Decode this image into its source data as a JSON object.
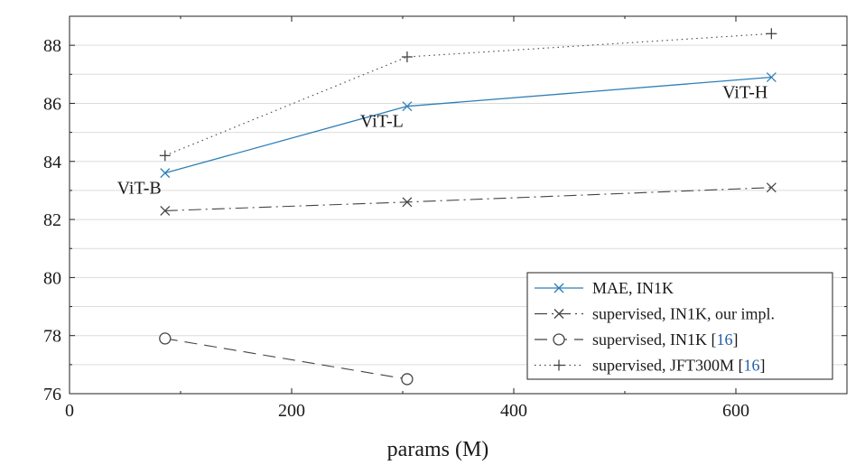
{
  "chart_data": {
    "type": "line",
    "title": "",
    "xlabel": "params (M)",
    "ylabel": "",
    "xlim": [
      0,
      700
    ],
    "ylim": [
      76,
      89
    ],
    "xticks": [
      0,
      200,
      400,
      600
    ],
    "yticks": [
      76,
      78,
      80,
      82,
      84,
      86,
      88
    ],
    "grid": true,
    "legend_position": "bottom-right",
    "colors": {
      "accent": "#2e7fb8",
      "dark": "#444444",
      "link": "#1f5fa8"
    },
    "series": [
      {
        "name": "MAE, IN1K",
        "style": "solid",
        "marker": "x",
        "color": "#2e7fb8",
        "points": [
          {
            "x": 86,
            "y": 83.6
          },
          {
            "x": 304,
            "y": 85.9
          },
          {
            "x": 632,
            "y": 86.9
          }
        ]
      },
      {
        "name": "supervised, IN1K, our impl.",
        "style": "dashdot",
        "marker": "x",
        "color": "#444444",
        "points": [
          {
            "x": 86,
            "y": 82.3
          },
          {
            "x": 304,
            "y": 82.6
          },
          {
            "x": 632,
            "y": 83.1
          }
        ]
      },
      {
        "name": "supervised, IN1K",
        "ref": "[16]",
        "style": "dashed",
        "marker": "o",
        "color": "#444444",
        "points": [
          {
            "x": 86,
            "y": 77.9
          },
          {
            "x": 304,
            "y": 76.5
          }
        ]
      },
      {
        "name": "supervised, JFT300M",
        "ref": "[16]",
        "style": "dotted",
        "marker": "+",
        "color": "#444444",
        "points": [
          {
            "x": 86,
            "y": 84.2
          },
          {
            "x": 304,
            "y": 87.6
          },
          {
            "x": 632,
            "y": 88.4
          }
        ]
      }
    ],
    "annotations": [
      {
        "text": "ViT-B",
        "x": 86,
        "y": 83.6,
        "anchor": "below-left"
      },
      {
        "text": "ViT-L",
        "x": 304,
        "y": 85.9,
        "anchor": "below-left"
      },
      {
        "text": "ViT-H",
        "x": 632,
        "y": 86.9,
        "anchor": "below-left"
      }
    ]
  }
}
